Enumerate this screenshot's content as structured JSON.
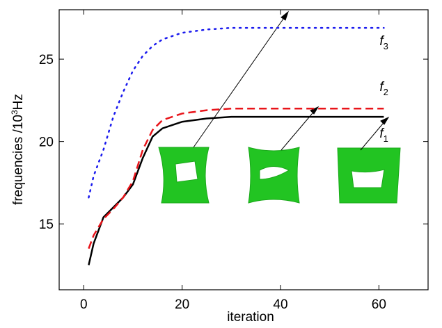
{
  "chart_data": {
    "type": "line",
    "xlabel": "iteration",
    "ylabel": "frequencies  /10",
    "ylabel_sup": "3",
    "ylabel_unit": "Hz",
    "x": [
      1,
      2,
      4,
      6,
      8,
      10,
      12,
      14,
      16,
      20,
      25,
      30,
      40,
      50,
      61
    ],
    "series": [
      {
        "label_main": "f",
        "label_sub": "1",
        "color": "#000000",
        "dash": "solid",
        "values": [
          12.5,
          13.8,
          15.4,
          16.0,
          16.6,
          17.4,
          19.0,
          20.3,
          20.8,
          21.2,
          21.4,
          21.5,
          21.5,
          21.5,
          21.5
        ]
      },
      {
        "label_main": "f",
        "label_sub": "2",
        "color": "#e8141a",
        "dash": "dashed",
        "values": [
          13.5,
          14.3,
          15.3,
          15.9,
          16.6,
          17.6,
          19.5,
          20.7,
          21.3,
          21.7,
          21.9,
          22.0,
          22.0,
          22.0,
          22.0
        ]
      },
      {
        "label_main": "f",
        "label_sub": "3",
        "color": "#1a1aee",
        "dash": "dotted",
        "values": [
          16.6,
          17.9,
          19.5,
          21.5,
          23.0,
          24.3,
          25.2,
          25.8,
          26.2,
          26.6,
          26.8,
          26.9,
          26.9,
          26.9,
          26.9
        ]
      }
    ],
    "xlim": [
      -5,
      70
    ],
    "xticks": [
      0,
      20,
      40,
      60
    ],
    "ylim": [
      11,
      28
    ],
    "yticks": [
      15,
      20,
      25
    ]
  }
}
